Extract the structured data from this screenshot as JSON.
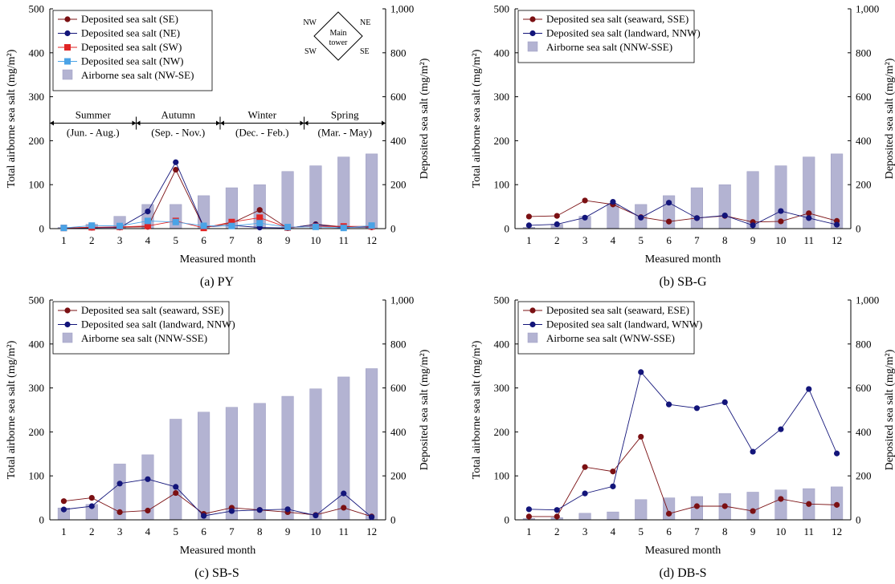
{
  "chart_data": [
    {
      "id": "py",
      "type": "bar+line",
      "caption": "(a)  PY",
      "xlabel": "Measured month",
      "ylabel_left": "Total airborne sea salt (mg/m²)",
      "ylabel_right": "Deposited sea salt (mg/m²)",
      "ylim_left": [
        0,
        500
      ],
      "ylim_right": [
        0,
        1000
      ],
      "left_ticks": [
        "0",
        "100",
        "200",
        "300",
        "400",
        "500"
      ],
      "right_ticks": [
        "0",
        "200",
        "400",
        "600",
        "800",
        "1,000"
      ],
      "months": [
        "1",
        "2",
        "3",
        "4",
        "5",
        "6",
        "7",
        "8",
        "9",
        "10",
        "11",
        "12"
      ],
      "bars": {
        "name": "Airborne sea salt (NW-SE)",
        "values": [
          3,
          10,
          28,
          55,
          55,
          75,
          93,
          100,
          130,
          143,
          163,
          170
        ]
      },
      "lines": [
        {
          "name": "Deposited sea salt (SE)",
          "marker": "circle",
          "color": "#7b1013",
          "values": [
            3,
            5,
            6,
            8,
            268,
            6,
            25,
            85,
            2,
            20,
            8,
            6
          ]
        },
        {
          "name": "Deposited sea salt (NE)",
          "marker": "circle",
          "color": "#13157a",
          "values": [
            3,
            4,
            5,
            78,
            302,
            8,
            15,
            5,
            3,
            18,
            5,
            8
          ]
        },
        {
          "name": "Deposited sea salt (SW)",
          "marker": "square",
          "color": "#e02424",
          "values": [
            3,
            6,
            8,
            12,
            35,
            3,
            30,
            50,
            5,
            10,
            10,
            10
          ]
        },
        {
          "name": "Deposited sea salt (NW)",
          "marker": "square",
          "color": "#4aa3e6",
          "values": [
            3,
            14,
            12,
            35,
            30,
            13,
            12,
            25,
            7,
            8,
            3,
            14
          ]
        }
      ],
      "compass": {
        "nw": "NW",
        "ne": "NE",
        "sw": "SW",
        "se": "SE",
        "center_line1": "Main",
        "center_line2": "tower"
      },
      "seasons": [
        {
          "name": "Summer",
          "range": "(Jun. - Aug.)"
        },
        {
          "name": "Autumn",
          "range": "(Sep. - Nov.)"
        },
        {
          "name": "Winter",
          "range": "(Dec. - Feb.)"
        },
        {
          "name": "Spring",
          "range": "(Mar. - May)"
        }
      ]
    },
    {
      "id": "sbg",
      "type": "bar+line",
      "caption": "(b) SB-G",
      "xlabel": "Measured month",
      "ylabel_left": "Total airborne sea salt (mg/m²)",
      "ylabel_right": "Deposited sea salt (mg/m²)",
      "ylim_left": [
        0,
        500
      ],
      "ylim_right": [
        0,
        1000
      ],
      "left_ticks": [
        "0",
        "100",
        "200",
        "300",
        "400",
        "500"
      ],
      "right_ticks": [
        "0",
        "200",
        "400",
        "600",
        "800",
        "1,000"
      ],
      "months": [
        "1",
        "2",
        "3",
        "4",
        "5",
        "6",
        "7",
        "8",
        "9",
        "10",
        "11",
        "12"
      ],
      "bars": {
        "name": "Airborne sea salt (NNW-SSE)",
        "values": [
          3,
          10,
          28,
          55,
          55,
          75,
          93,
          100,
          130,
          143,
          163,
          170
        ]
      },
      "lines": [
        {
          "name": "Deposited sea salt (seaward, SSE)",
          "marker": "circle",
          "color": "#7b1013",
          "values": [
            55,
            58,
            128,
            110,
            52,
            32,
            48,
            58,
            30,
            33,
            70,
            35
          ]
        },
        {
          "name": "Deposited sea salt (landward, NNW)",
          "marker": "circle",
          "color": "#13157a",
          "values": [
            15,
            20,
            50,
            122,
            50,
            118,
            48,
            60,
            15,
            80,
            48,
            18
          ]
        }
      ]
    },
    {
      "id": "sbs",
      "type": "bar+line",
      "caption": "(c) SB-S",
      "xlabel": "Measured month",
      "ylabel_left": "Total airborne sea salt (mg/m²)",
      "ylabel_right": "Deposited sea salt (mg/m²)",
      "ylim_left": [
        0,
        500
      ],
      "ylim_right": [
        0,
        1000
      ],
      "left_ticks": [
        "0",
        "100",
        "200",
        "300",
        "400",
        "500"
      ],
      "right_ticks": [
        "0",
        "200",
        "400",
        "600",
        "800",
        "1,000"
      ],
      "months": [
        "1",
        "2",
        "3",
        "4",
        "5",
        "6",
        "7",
        "8",
        "9",
        "10",
        "11",
        "12"
      ],
      "bars": {
        "name": "Airborne sea salt (NNW-SSE)",
        "values": [
          27,
          35,
          127,
          148,
          229,
          245,
          256,
          265,
          281,
          298,
          325,
          344
        ]
      },
      "lines": [
        {
          "name": "Deposited sea salt (seaward, SSE)",
          "marker": "circle",
          "color": "#7b1013",
          "values": [
            85,
            100,
            35,
            42,
            122,
            27,
            55,
            45,
            35,
            22,
            55,
            15
          ]
        },
        {
          "name": "Deposited sea salt (landward, NNW)",
          "marker": "circle",
          "color": "#13157a",
          "values": [
            47,
            62,
            165,
            185,
            150,
            18,
            40,
            45,
            48,
            20,
            120,
            12
          ]
        }
      ]
    },
    {
      "id": "dbs",
      "type": "bar+line",
      "caption": "(d) DB-S",
      "xlabel": "Measured month",
      "ylabel_left": "Total airborne sea salt (mg/m²)",
      "ylabel_right": "Deposited sea salt (mg/m²)",
      "ylim_left": [
        0,
        500
      ],
      "ylim_right": [
        0,
        1000
      ],
      "left_ticks": [
        "0",
        "100",
        "200",
        "300",
        "400",
        "500"
      ],
      "right_ticks": [
        "0",
        "200",
        "400",
        "600",
        "800",
        "1,000"
      ],
      "months": [
        "1",
        "2",
        "3",
        "4",
        "5",
        "6",
        "7",
        "8",
        "9",
        "10",
        "11",
        "12"
      ],
      "bars": {
        "name": "Airborne sea salt (WNW-SSE)",
        "values": [
          3,
          5,
          15,
          18,
          46,
          50,
          53,
          60,
          63,
          68,
          71,
          75
        ]
      },
      "lines": [
        {
          "name": "Deposited sea salt (seaward, ESE)",
          "marker": "circle",
          "color": "#7b1013",
          "values": [
            15,
            15,
            240,
            220,
            378,
            28,
            62,
            62,
            40,
            95,
            72,
            68
          ]
        },
        {
          "name": "Deposited sea salt (landward, WNW)",
          "marker": "circle",
          "color": "#13157a",
          "values": [
            48,
            45,
            120,
            152,
            672,
            525,
            508,
            535,
            310,
            412,
            595,
            302
          ]
        }
      ]
    }
  ],
  "colors": {
    "bar": "#b3b3d2",
    "bar_edge": "#9d9dc2",
    "axis": "#000000",
    "background": "#ffffff"
  }
}
